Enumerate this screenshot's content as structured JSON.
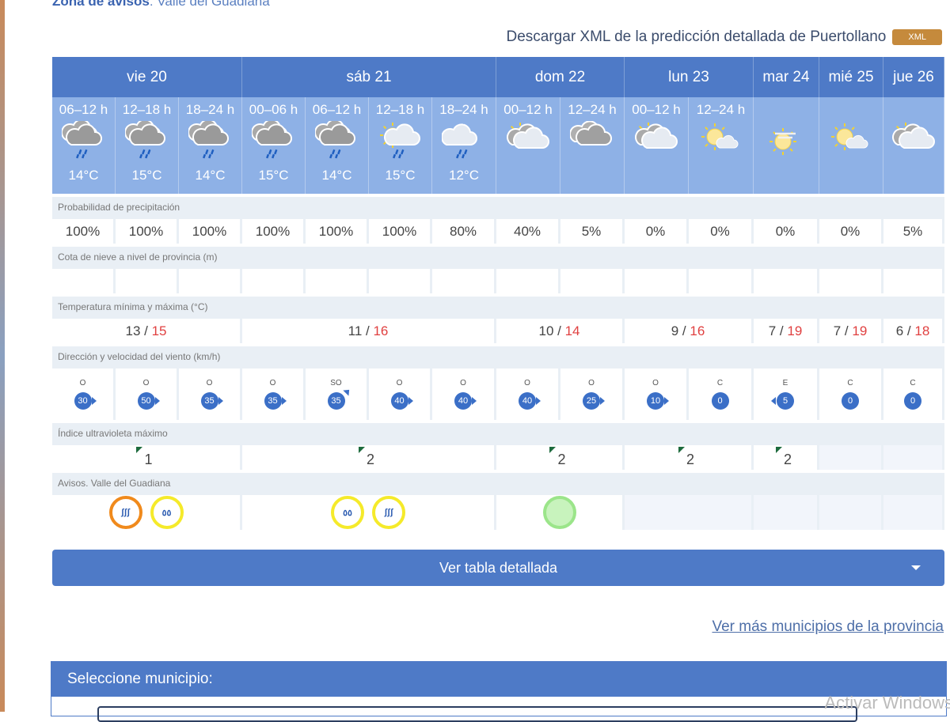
{
  "zona": {
    "label": "Zona de avisos",
    "value": "Valle del Guadiana"
  },
  "xml": {
    "text": "Descargar XML de la predicción detallada de Puertollano",
    "button": "XML"
  },
  "days": [
    {
      "label": "vie 20",
      "span": 3
    },
    {
      "label": "sáb 21",
      "span": 4
    },
    {
      "label": "dom 22",
      "span": 2
    },
    {
      "label": "lun 23",
      "span": 2
    },
    {
      "label": "mar 24",
      "span": 1
    },
    {
      "label": "mié 25",
      "span": 1
    },
    {
      "label": "jue 26",
      "span": 1
    }
  ],
  "periods": [
    {
      "label": "06–12 h",
      "icon": "rain-cloud",
      "temp": "14°C"
    },
    {
      "label": "12–18 h",
      "icon": "rain-cloud",
      "temp": "15°C"
    },
    {
      "label": "18–24 h",
      "icon": "rain-cloud",
      "temp": "14°C"
    },
    {
      "label": "00–06 h",
      "icon": "rain-cloud",
      "temp": "15°C"
    },
    {
      "label": "06–12 h",
      "icon": "rain-cloud",
      "temp": "14°C"
    },
    {
      "label": "12–18 h",
      "icon": "sun-rain",
      "temp": "15°C"
    },
    {
      "label": "18–24 h",
      "icon": "storm-rain",
      "temp": "12°C"
    },
    {
      "label": "00–12 h",
      "icon": "sun-cloud",
      "temp": ""
    },
    {
      "label": "12–24 h",
      "icon": "cloud",
      "temp": ""
    },
    {
      "label": "00–12 h",
      "icon": "sun-cloud",
      "temp": ""
    },
    {
      "label": "12–24 h",
      "icon": "sun-small-cloud",
      "temp": ""
    },
    {
      "label": "",
      "icon": "sun-haze",
      "temp": ""
    },
    {
      "label": "",
      "icon": "sun-small-cloud",
      "temp": ""
    },
    {
      "label": "",
      "icon": "sun-cloud",
      "temp": ""
    }
  ],
  "labels": {
    "precip": "Probabilidad de precipitación",
    "snow": "Cota de nieve a nivel de provincia (m)",
    "temp": "Temperatura mínima y máxima (°C)",
    "wind": "Dirección y velocidad del viento (km/h)",
    "uv": "Índice ultravioleta máximo",
    "avisos": "Avisos. Valle del Guadiana"
  },
  "precip": [
    "100%",
    "100%",
    "100%",
    "100%",
    "100%",
    "100%",
    "80%",
    "40%",
    "5%",
    "0%",
    "0%",
    "0%",
    "0%",
    "5%"
  ],
  "minmax": [
    {
      "min": "13",
      "max": "15"
    },
    {
      "min": "11",
      "max": "16"
    },
    {
      "min": "10",
      "max": "14"
    },
    {
      "min": "9",
      "max": "16"
    },
    {
      "min": "7",
      "max": "19"
    },
    {
      "min": "7",
      "max": "19"
    },
    {
      "min": "6",
      "max": "18"
    }
  ],
  "wind": [
    {
      "dir": "O",
      "speed": "30"
    },
    {
      "dir": "O",
      "speed": "50"
    },
    {
      "dir": "O",
      "speed": "35"
    },
    {
      "dir": "O",
      "speed": "35"
    },
    {
      "dir": "SO",
      "speed": "35"
    },
    {
      "dir": "O",
      "speed": "40"
    },
    {
      "dir": "O",
      "speed": "40"
    },
    {
      "dir": "O",
      "speed": "40"
    },
    {
      "dir": "O",
      "speed": "25"
    },
    {
      "dir": "O",
      "speed": "10"
    },
    {
      "dir": "C",
      "speed": "0"
    },
    {
      "dir": "E",
      "speed": "5"
    },
    {
      "dir": "C",
      "speed": "0"
    },
    {
      "dir": "C",
      "speed": "0"
    }
  ],
  "uv": [
    "1",
    "2",
    "2",
    "2",
    "2",
    "",
    ""
  ],
  "avisos": [
    [
      {
        "type": "coastal",
        "level": "orange"
      },
      {
        "type": "rain",
        "level": "yellow"
      }
    ],
    [
      {
        "type": "rain",
        "level": "yellow"
      },
      {
        "type": "coastal",
        "level": "yellow"
      }
    ],
    [
      {
        "type": "none",
        "level": "green"
      }
    ],
    [],
    [],
    [],
    []
  ],
  "colors": {
    "orange": "#f08a1c",
    "yellow": "#f5ea2a",
    "green": "#9be58a",
    "header": "#4e7ac7"
  },
  "ver_tabla": "Ver tabla detallada",
  "ver_mas": "Ver más municipios de la provincia",
  "seleccione": "Seleccione municipio:",
  "watermark": "Activar Windows"
}
